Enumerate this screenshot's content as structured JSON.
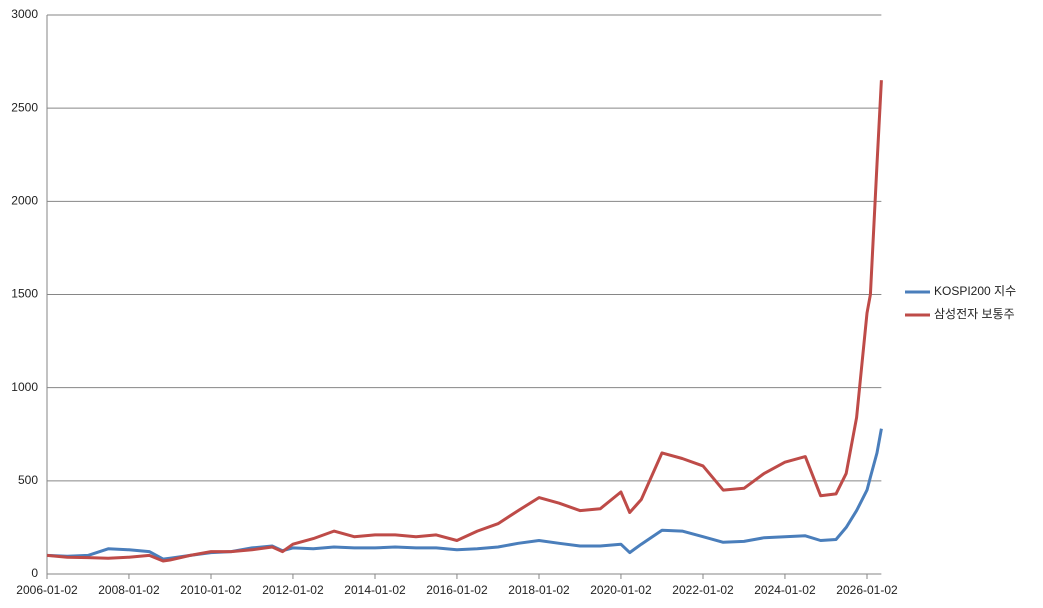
{
  "chart_data": {
    "type": "line",
    "x": [
      "2006-01-02",
      "2006-07-01",
      "2007-01-02",
      "2007-07-01",
      "2008-01-02",
      "2008-07-01",
      "2008-11-01",
      "2009-01-02",
      "2009-07-01",
      "2010-01-02",
      "2010-07-01",
      "2011-01-02",
      "2011-07-01",
      "2011-10-01",
      "2012-01-02",
      "2012-07-01",
      "2013-01-02",
      "2013-07-01",
      "2014-01-02",
      "2014-07-01",
      "2015-01-02",
      "2015-07-01",
      "2016-01-02",
      "2016-07-01",
      "2017-01-02",
      "2017-07-01",
      "2018-01-02",
      "2018-07-01",
      "2019-01-02",
      "2019-07-01",
      "2020-01-02",
      "2020-03-20",
      "2020-07-01",
      "2021-01-02",
      "2021-07-01",
      "2022-01-02",
      "2022-07-01",
      "2023-01-02",
      "2023-07-01",
      "2024-01-02",
      "2024-07-01",
      "2024-11-15",
      "2025-04-01",
      "2025-07-01",
      "2025-10-01",
      "2026-01-02",
      "2026-02-01",
      "2026-04-01",
      "2026-05-10"
    ],
    "series": [
      {
        "name": "KOSPI200 지수",
        "color": "#4a7ebb",
        "values": [
          100,
          95,
          100,
          135,
          130,
          120,
          80,
          85,
          100,
          115,
          120,
          140,
          150,
          125,
          140,
          135,
          145,
          140,
          140,
          145,
          140,
          140,
          130,
          135,
          145,
          165,
          180,
          165,
          150,
          150,
          160,
          115,
          160,
          235,
          230,
          200,
          170,
          175,
          195,
          200,
          205,
          180,
          185,
          250,
          340,
          450,
          520,
          650,
          780
        ]
      },
      {
        "name": "삼성전자 보통주",
        "color": "#be4b48",
        "values": [
          100,
          90,
          88,
          85,
          90,
          100,
          70,
          75,
          100,
          120,
          120,
          130,
          145,
          120,
          160,
          190,
          230,
          200,
          210,
          210,
          200,
          210,
          180,
          230,
          270,
          340,
          410,
          380,
          340,
          350,
          440,
          330,
          400,
          650,
          620,
          580,
          450,
          460,
          540,
          600,
          630,
          420,
          430,
          540,
          840,
          1400,
          1500,
          2200,
          2650
        ]
      }
    ],
    "ylim": [
      0,
      3000
    ],
    "yticks": [
      0,
      500,
      1000,
      1500,
      2000,
      2500,
      3000
    ],
    "xlim": [
      "2006-01-02",
      "2026-05-10"
    ],
    "xticks": [
      "2006-01-02",
      "2008-01-02",
      "2010-01-02",
      "2012-01-02",
      "2014-01-02",
      "2016-01-02",
      "2018-01-02",
      "2020-01-02",
      "2022-01-02",
      "2024-01-02",
      "2026-01-02"
    ],
    "grid": true,
    "legend": "right"
  }
}
